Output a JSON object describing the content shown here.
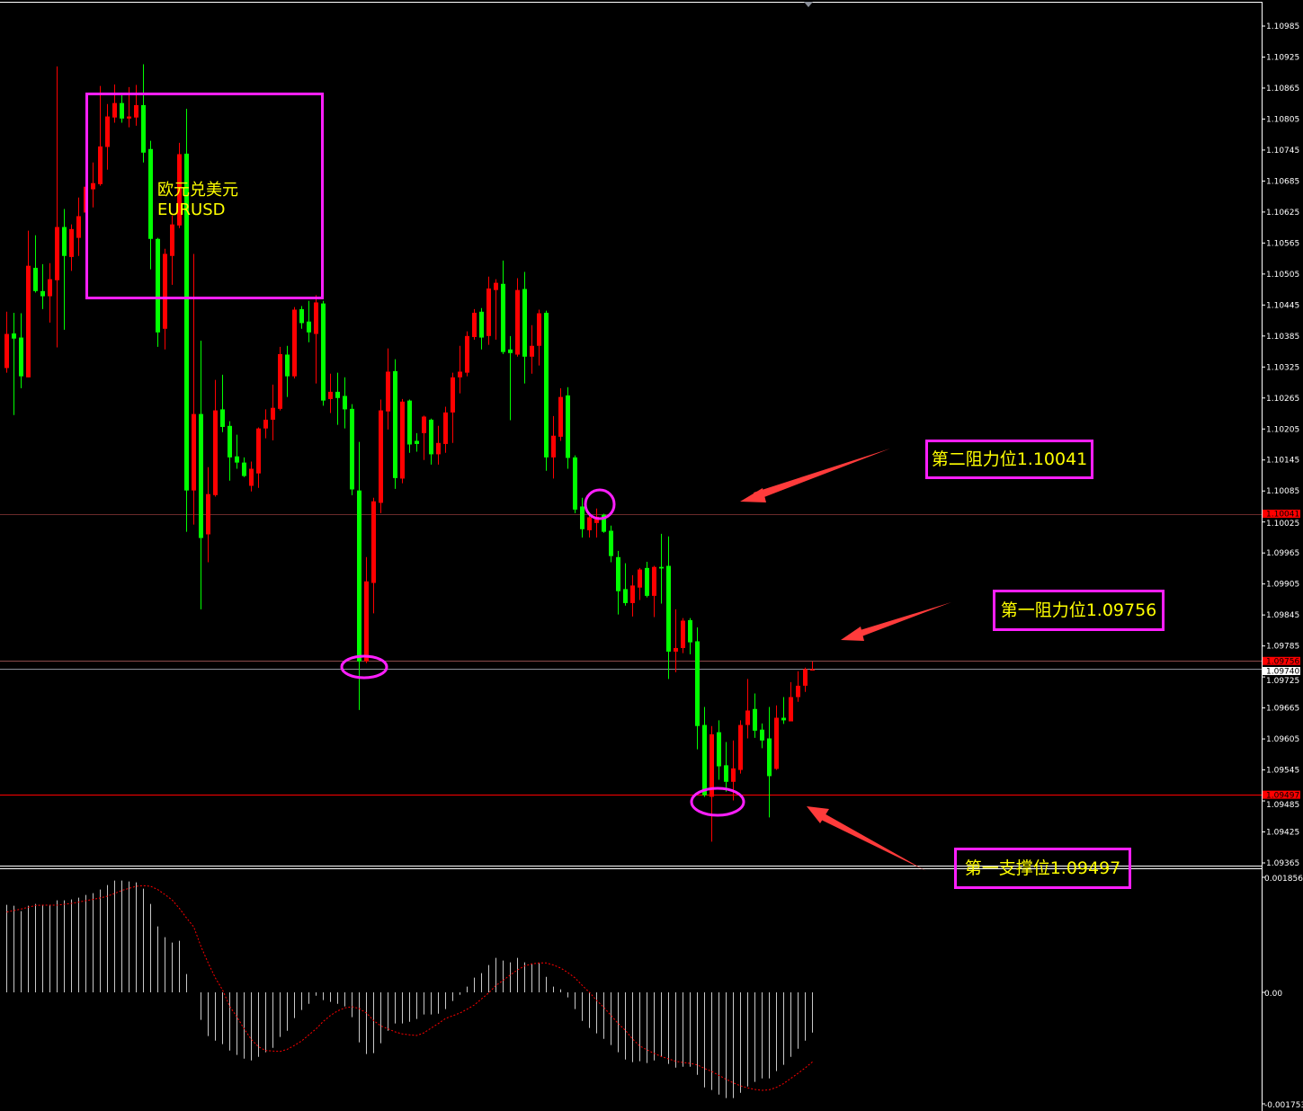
{
  "colors": {
    "background": "#000000",
    "up_candle": "#ff0000",
    "down_candle": "#00ff00",
    "annotation": "#ff1fff",
    "annotation_text": "#ffff00",
    "arrow": "#ff3b3b",
    "macd_histogram": "#c8c8c8",
    "macd_signal": "#ff0000"
  },
  "title": {
    "line1": "欧元兑美元",
    "line2": "EURUSD"
  },
  "labels": {
    "resistance2": "第二阻力位1.10041",
    "resistance1": "第一阻力位1.09756",
    "support1": "第一支撑位1.09497"
  },
  "chart_data": [
    {
      "type": "candlestick",
      "symbol": "EURUSD",
      "ylim": [
        1.09335,
        1.11035
      ],
      "y_ticks": [
        1.10985,
        1.10925,
        1.10865,
        1.10805,
        1.10745,
        1.10685,
        1.10625,
        1.10565,
        1.10505,
        1.10445,
        1.10385,
        1.10325,
        1.10265,
        1.10205,
        1.10145,
        1.10085,
        1.10025,
        1.09965,
        1.09905,
        1.09845,
        1.09785,
        1.09725,
        1.09665,
        1.09605,
        1.09545,
        1.09485,
        1.09425,
        1.09365
      ],
      "price_markers": [
        {
          "value": "1.10041",
          "style": "red"
        },
        {
          "value": "1.09756",
          "style": "red"
        },
        {
          "value": "1.09740",
          "style": "white"
        },
        {
          "value": "1.09497",
          "style": "red"
        }
      ],
      "horizontal_lines": [
        {
          "price": 1.10041,
          "color": "#6a2a2a"
        },
        {
          "price": 1.09756,
          "color": "#8a4a4a"
        },
        {
          "price": 1.0974,
          "color": "#8a8f99"
        },
        {
          "price": 1.09497,
          "color": "#ff0000"
        }
      ],
      "candles_ohlc": [
        [
          1.10323,
          1.10432,
          1.10314,
          1.10389
        ],
        [
          1.1039,
          1.1043,
          1.10232,
          1.1038
        ],
        [
          1.10382,
          1.10429,
          1.10284,
          1.10307
        ],
        [
          1.10305,
          1.10589,
          1.10305,
          1.10521
        ],
        [
          1.10517,
          1.1058,
          1.10469,
          1.10472
        ],
        [
          1.10472,
          1.10524,
          1.10437,
          1.10462
        ],
        [
          1.10462,
          1.10526,
          1.10411,
          1.10495
        ],
        [
          1.10493,
          1.10907,
          1.10363,
          1.10596
        ],
        [
          1.10596,
          1.10631,
          1.10397,
          1.1054
        ],
        [
          1.10538,
          1.10601,
          1.10511,
          1.10592
        ],
        [
          1.10575,
          1.10653,
          1.1054,
          1.10617
        ],
        [
          1.10624,
          1.10679,
          1.10618,
          1.10674
        ],
        [
          1.10669,
          1.10721,
          1.10634,
          1.10681
        ],
        [
          1.10679,
          1.10869,
          1.10676,
          1.10752
        ],
        [
          1.10751,
          1.10834,
          1.10707,
          1.1081
        ],
        [
          1.10808,
          1.10872,
          1.10798,
          1.10836
        ],
        [
          1.10836,
          1.10853,
          1.10798,
          1.10806
        ],
        [
          1.10806,
          1.10867,
          1.10789,
          1.1081
        ],
        [
          1.10808,
          1.10871,
          1.10792,
          1.10832
        ],
        [
          1.10832,
          1.10911,
          1.10721,
          1.1074
        ],
        [
          1.10747,
          1.10763,
          1.10514,
          1.10573
        ],
        [
          1.10573,
          1.10575,
          1.10364,
          1.10392
        ],
        [
          1.10399,
          1.10554,
          1.10359,
          1.10544
        ],
        [
          1.1054,
          1.10618,
          1.10484,
          1.10601
        ],
        [
          1.10599,
          1.10759,
          1.10594,
          1.10737
        ],
        [
          1.10738,
          1.10825,
          1.10006,
          1.10086
        ],
        [
          1.10086,
          1.10544,
          1.1002,
          1.10234
        ],
        [
          1.10234,
          1.10376,
          1.09856,
          1.09994
        ],
        [
          1.10001,
          1.10131,
          1.09947,
          1.10079
        ],
        [
          1.10077,
          1.103,
          1.10074,
          1.10241
        ],
        [
          1.10243,
          1.1031,
          1.10199,
          1.10209
        ],
        [
          1.10211,
          1.1022,
          1.10105,
          1.1015
        ],
        [
          1.10152,
          1.10194,
          1.10128,
          1.1014
        ],
        [
          1.1014,
          1.1015,
          1.10112,
          1.10114
        ],
        [
          1.10095,
          1.10142,
          1.10084,
          1.10128
        ],
        [
          1.10119,
          1.10208,
          1.10091,
          1.10206
        ],
        [
          1.10206,
          1.10243,
          1.10187,
          1.10223
        ],
        [
          1.10223,
          1.10291,
          1.10183,
          1.10246
        ],
        [
          1.10244,
          1.10364,
          1.10241,
          1.1035
        ],
        [
          1.10349,
          1.10366,
          1.10267,
          1.10307
        ],
        [
          1.10307,
          1.10441,
          1.10303,
          1.10436
        ],
        [
          1.10437,
          1.10443,
          1.10399,
          1.1041
        ],
        [
          1.10413,
          1.10453,
          1.10373,
          1.10392
        ],
        [
          1.10389,
          1.10464,
          1.10293,
          1.1045
        ],
        [
          1.10448,
          1.10453,
          1.1025,
          1.1026
        ],
        [
          1.10263,
          1.10312,
          1.10236,
          1.10277
        ],
        [
          1.10277,
          1.10314,
          1.10213,
          1.10265
        ],
        [
          1.10269,
          1.10305,
          1.10206,
          1.10243
        ],
        [
          1.10244,
          1.10253,
          1.10077,
          1.10088
        ],
        [
          1.10086,
          1.1018,
          1.09661,
          1.09755
        ],
        [
          1.09755,
          1.09957,
          1.09752,
          1.0991
        ],
        [
          1.09907,
          1.10072,
          1.09848,
          1.10065
        ],
        [
          1.10062,
          1.10262,
          1.10042,
          1.10241
        ],
        [
          1.10239,
          1.10361,
          1.10204,
          1.10316
        ],
        [
          1.10317,
          1.1034,
          1.10089,
          1.1011
        ],
        [
          1.10109,
          1.10263,
          1.101,
          1.10258
        ],
        [
          1.1026,
          1.10262,
          1.10159,
          1.10175
        ],
        [
          1.10182,
          1.10197,
          1.10161,
          1.10176
        ],
        [
          1.10197,
          1.10231,
          1.10145,
          1.10229
        ],
        [
          1.10223,
          1.10225,
          1.10136,
          1.10156
        ],
        [
          1.10156,
          1.10211,
          1.10136,
          1.10178
        ],
        [
          1.10176,
          1.10248,
          1.10159,
          1.10237
        ],
        [
          1.10237,
          1.10314,
          1.10178,
          1.10305
        ],
        [
          1.10305,
          1.10366,
          1.10274,
          1.10316
        ],
        [
          1.10314,
          1.10394,
          1.10307,
          1.10385
        ],
        [
          1.10383,
          1.10437,
          1.10378,
          1.1043
        ],
        [
          1.10432,
          1.10439,
          1.10359,
          1.10382
        ],
        [
          1.10385,
          1.105,
          1.10368,
          1.10477
        ],
        [
          1.10474,
          1.10495,
          1.10378,
          1.10488
        ],
        [
          1.10486,
          1.10531,
          1.1035,
          1.10354
        ],
        [
          1.10359,
          1.10385,
          1.10222,
          1.10352
        ],
        [
          1.10349,
          1.10497,
          1.10345,
          1.10474
        ],
        [
          1.10476,
          1.10509,
          1.10293,
          1.10345
        ],
        [
          1.10345,
          1.10406,
          1.10312,
          1.10366
        ],
        [
          1.10366,
          1.10436,
          1.10328,
          1.10429
        ],
        [
          1.1043,
          1.10434,
          1.10124,
          1.1015
        ],
        [
          1.1015,
          1.1023,
          1.10109,
          1.10192
        ],
        [
          1.1019,
          1.10284,
          1.10182,
          1.10267
        ],
        [
          1.1027,
          1.10286,
          1.10128,
          1.10149
        ],
        [
          1.1015,
          1.10154,
          1.10042,
          1.10049
        ],
        [
          1.10055,
          1.10072,
          1.09995,
          1.10011
        ],
        [
          1.10009,
          1.10037,
          1.09995,
          1.10034
        ],
        [
          1.10023,
          1.10051,
          1.09995,
          1.10035
        ],
        [
          1.10039,
          1.10041,
          1.10004,
          1.10006
        ],
        [
          1.10008,
          1.10018,
          1.09947,
          1.09959
        ],
        [
          1.09957,
          1.09969,
          1.09846,
          1.09891
        ],
        [
          1.09895,
          1.09945,
          1.09863,
          1.09868
        ],
        [
          1.09868,
          1.09922,
          1.09842,
          1.09902
        ],
        [
          1.09898,
          1.09936,
          1.09874,
          1.09933
        ],
        [
          1.09936,
          1.09948,
          1.09879,
          1.09882
        ],
        [
          1.09882,
          1.0994,
          1.09841,
          1.09938
        ],
        [
          1.09938,
          1.10002,
          1.09867,
          1.09935
        ],
        [
          1.0994,
          1.09997,
          1.09721,
          1.09774
        ],
        [
          1.09774,
          1.09856,
          1.09734,
          1.09781
        ],
        [
          1.09781,
          1.09839,
          1.09771,
          1.09834
        ],
        [
          1.09835,
          1.09839,
          1.09769,
          1.09792
        ],
        [
          1.09794,
          1.09821,
          1.09585,
          1.0963
        ],
        [
          1.09632,
          1.09667,
          1.09493,
          1.09496
        ],
        [
          1.09493,
          1.0963,
          1.09406,
          1.09614
        ],
        [
          1.09618,
          1.09641,
          1.09526,
          1.09552
        ],
        [
          1.09554,
          1.09599,
          1.09503,
          1.09522
        ],
        [
          1.09522,
          1.09602,
          1.09486,
          1.09548
        ],
        [
          1.09545,
          1.09641,
          1.09538,
          1.09632
        ],
        [
          1.09632,
          1.09721,
          1.09606,
          1.0966
        ],
        [
          1.09663,
          1.09693,
          1.09607,
          1.09621
        ],
        [
          1.09623,
          1.09635,
          1.09587,
          1.09602
        ],
        [
          1.09606,
          1.09667,
          1.09453,
          1.09533
        ],
        [
          1.09547,
          1.0967,
          1.09545,
          1.09646
        ],
        [
          1.09646,
          1.09686,
          1.09634,
          1.09641
        ],
        [
          1.09639,
          1.09715,
          1.09639,
          1.09686
        ],
        [
          1.09686,
          1.09736,
          1.09677,
          1.09708
        ],
        [
          1.09708,
          1.09743,
          1.09696,
          1.0974
        ],
        [
          1.09738,
          1.09755,
          1.09738,
          1.0974
        ]
      ]
    },
    {
      "type": "bar",
      "indicator": "MACD",
      "ylim": [
        -0.001753,
        0.001856
      ],
      "y_ticks": [
        "0.001856",
        "0.00",
        "-0.001753"
      ],
      "histogram": [
        0.001372,
        0.001358,
        0.001274,
        0.001358,
        0.001387,
        0.001372,
        0.001363,
        0.001443,
        0.001443,
        0.001457,
        0.001485,
        0.001528,
        0.001556,
        0.001612,
        0.001683,
        0.001753,
        0.001753,
        0.001739,
        0.001725,
        0.001626,
        0.001387,
        0.001034,
        0.000865,
        0.00078,
        0.000808,
        0.000287,
        0,
        -0.000432,
        -0.000686,
        -0.000757,
        -0.000813,
        -0.000912,
        -0.000982,
        -0.001039,
        -0.001067,
        -0.001011,
        -0.00094,
        -0.00087,
        -0.0007,
        -0.000602,
        -0.000404,
        -0.000277,
        -0.000179,
        -5.2e-05,
        -0.000122,
        -0.00015,
        -0.000179,
        -0.000221,
        -0.00039,
        -0.000785,
        -0.000968,
        -0.000954,
        -0.000799,
        -0.000602,
        -0.000489,
        -0.000489,
        -0.000461,
        -0.000418,
        -0.000348,
        -0.000348,
        -0.000334,
        -0.000263,
        -0.000136,
        -3.8e-05,
        8.9e-05,
        0.00023,
        0.000301,
        0.000428,
        0.000541,
        0.000498,
        0.00047,
        0.000541,
        0.00047,
        0.000442,
        0.000456,
        0.000244,
        8.9e-05,
        4.7e-05,
        -8e-05,
        -0.000263,
        -0.000447,
        -0.000559,
        -0.000644,
        -0.000729,
        -0.000827,
        -0.00094,
        -0.001053,
        -0.001095,
        -0.001081,
        -0.001109,
        -0.001067,
        -0.001011,
        -0.001123,
        -0.00118,
        -0.001166,
        -0.001166,
        -0.001293,
        -0.00149,
        -0.001532,
        -0.001603,
        -0.001659,
        -0.001659,
        -0.001575,
        -0.001476,
        -0.001405,
        -0.001349,
        -0.001349,
        -0.001236,
        -0.001137,
        -0.001011,
        -0.000884,
        -0.000757,
        -0.00063
      ],
      "signal": [
        0.00126,
        0.001283,
        0.001307,
        0.001335,
        0.001363,
        0.001367,
        0.001367,
        0.001367,
        0.001382,
        0.001396,
        0.001415,
        0.001438,
        0.001457,
        0.001481,
        0.001509,
        0.001551,
        0.001598,
        0.001631,
        0.001664,
        0.001673,
        0.001664,
        0.001612,
        0.001532,
        0.001448,
        0.001316,
        0.001166,
        0.001025,
        0.000719,
        0.000461,
        0.000226,
        3.8e-05,
        -0.000221,
        -0.000385,
        -0.000573,
        -0.000738,
        -0.000855,
        -0.000912,
        -0.000921,
        -0.000926,
        -0.000893,
        -0.000832,
        -0.000761,
        -0.000667,
        -0.000573,
        -0.000456,
        -0.000362,
        -0.000291,
        -0.000244,
        -0.000226,
        -0.000254,
        -0.000324,
        -0.000442,
        -0.000526,
        -0.000573,
        -0.00062,
        -0.000653,
        -0.000667,
        -0.000677,
        -0.000635,
        -0.000559,
        -0.000489,
        -0.000409,
        -0.000367,
        -0.000324,
        -0.000263,
        -0.000197,
        -0.000103,
        -9e-06,
        0.000108,
        0.000188,
        0.000273,
        0.000353,
        0.000414,
        0.000447,
        0.000461,
        0.000461,
        0.000428,
        0.000381,
        0.00031,
        0.000226,
        0.000108,
        0,
        -0.000127,
        -0.000235,
        -0.000362,
        -0.000489,
        -0.000597,
        -0.000733,
        -0.000841,
        -0.000902,
        -0.000959,
        -0.001006,
        -0.001043,
        -0.001081,
        -0.0011,
        -0.001114,
        -0.001137,
        -0.001194,
        -0.001241,
        -0.001302,
        -0.001363,
        -0.001419,
        -0.001466,
        -0.001499,
        -0.001523,
        -0.001537,
        -0.001528,
        -0.00149,
        -0.001429,
        -0.001349,
        -0.001269,
        -0.001184,
        -0.00109
      ]
    }
  ]
}
